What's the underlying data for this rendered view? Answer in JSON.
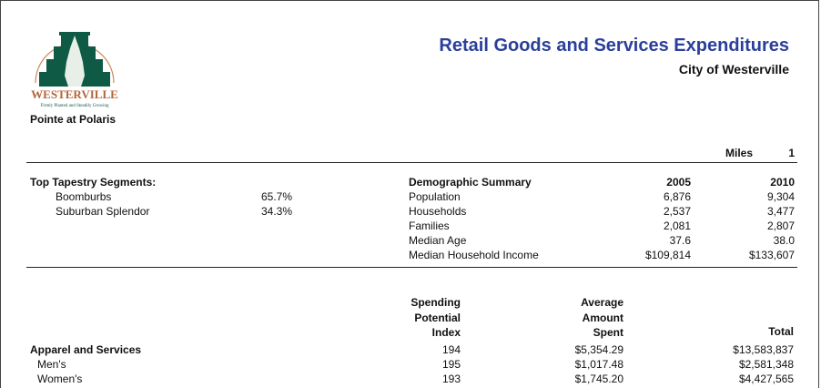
{
  "header": {
    "title": "Retail Goods and Services Expenditures",
    "city": "City of Westerville",
    "site": "Pointe at Polaris",
    "logo_text": "WESTERVILLE",
    "logo_tagline": "Firmly Planted and Steadily Growing"
  },
  "miles": {
    "label": "Miles",
    "value": "1"
  },
  "tapestry": {
    "label": "Top Tapestry Segments:",
    "items": [
      {
        "name": "Boomburbs",
        "pct": "65.7%"
      },
      {
        "name": "Suburban Splendor",
        "pct": "34.3%"
      }
    ]
  },
  "demographics": {
    "label": "Demographic Summary",
    "col1": "2005",
    "col2": "2010",
    "rows": [
      {
        "name": "Population",
        "v2005": "6,876",
        "v2010": "9,304"
      },
      {
        "name": "Households",
        "v2005": "2,537",
        "v2010": "3,477"
      },
      {
        "name": "Families",
        "v2005": "2,081",
        "v2010": "2,807"
      },
      {
        "name": "Median Age",
        "v2005": "37.6",
        "v2010": "38.0"
      },
      {
        "name": "Median Household Income",
        "v2005": "$109,814",
        "v2010": "$133,607"
      }
    ]
  },
  "spending": {
    "headers": {
      "index": [
        "Spending",
        "Potential",
        "Index"
      ],
      "avg": [
        "Average",
        "Amount",
        "Spent"
      ],
      "total": "Total"
    },
    "rows": [
      {
        "name": "Apparel and Services",
        "index": "194",
        "avg": "$5,354.29",
        "total": "$13,583,837",
        "bold": true
      },
      {
        "name": "Men's",
        "index": "195",
        "avg": "$1,017.48",
        "total": "$2,581,348"
      },
      {
        "name": "Women's",
        "index": "193",
        "avg": "$1,745.20",
        "total": "$4,427,565"
      }
    ]
  }
}
